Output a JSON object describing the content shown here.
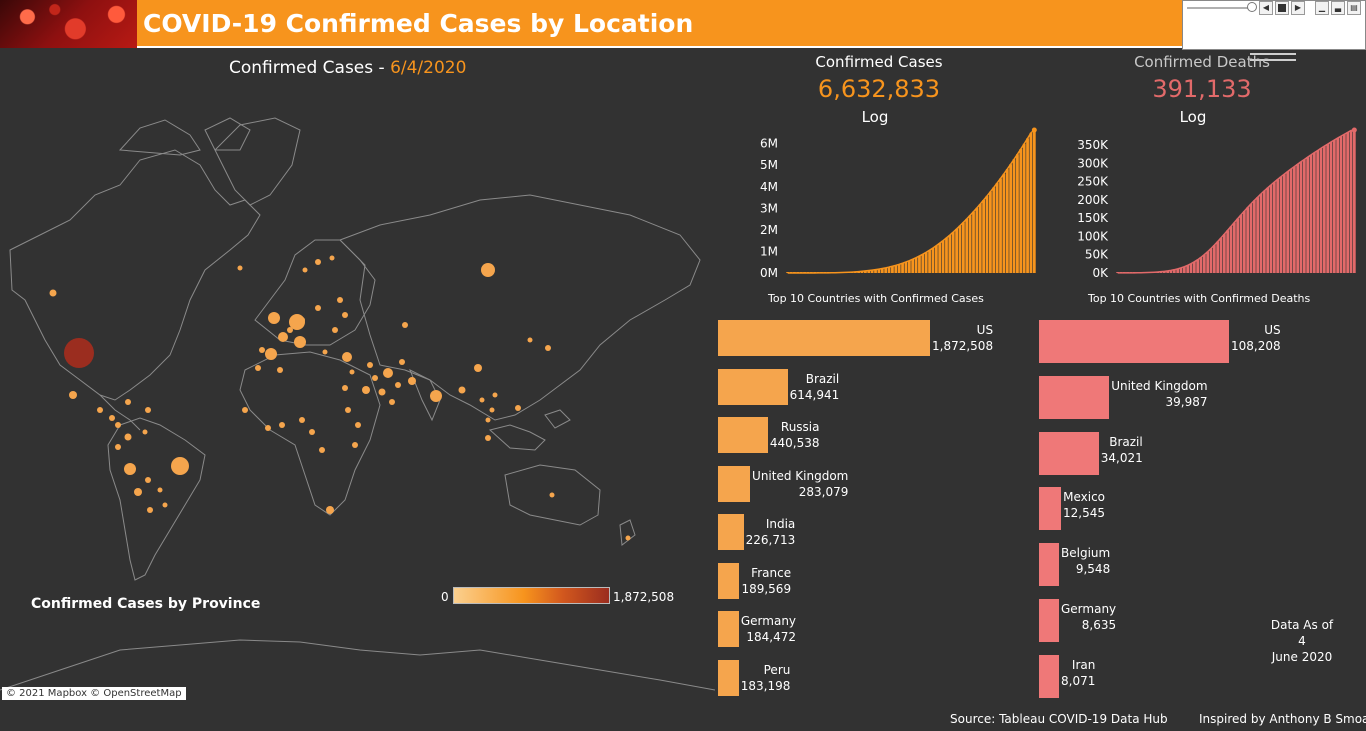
{
  "header": {
    "title": "COVID-19 Confirmed Cases by Location",
    "image": "coronavirus-banner"
  },
  "map_title": {
    "prefix": "Confirmed Cases - ",
    "date": "6/4/2020"
  },
  "map": {
    "credit": "© 2021 Mapbox © OpenStreetMap",
    "caption": "Confirmed Cases by Province",
    "legend_min": "0",
    "legend_max": "1,872,508"
  },
  "kpis": {
    "cases": {
      "label": "Confirmed Cases",
      "value": "6,632,833",
      "scale": "Log"
    },
    "deaths": {
      "label": "Confirmed Deaths",
      "value": "391,133",
      "scale": "Log"
    }
  },
  "colors": {
    "accent": "#f7941d",
    "cases_bar": "#f5a54d",
    "deaths_bar": "#ef7878",
    "deaths_line": "#e26a6a",
    "background": "#323232"
  },
  "chart_data": [
    {
      "type": "bar",
      "title": "",
      "ylabel": "",
      "y_ticks": [
        "0M",
        "1M",
        "2M",
        "3M",
        "4M",
        "5M",
        "6M"
      ],
      "ylim": [
        0,
        6632833
      ],
      "series": [
        {
          "values": [
            0.5,
            0.5,
            0.6,
            0.7,
            0.9,
            1.1,
            1.4,
            1.8,
            2.4,
            3.2,
            4.2,
            5.6,
            7.4,
            9.6,
            12.5,
            16,
            21,
            27,
            34,
            43,
            54,
            66,
            80,
            96,
            114,
            134,
            156,
            181,
            209,
            240,
            275,
            314,
            357,
            404,
            456,
            512,
            573,
            640,
            712,
            790,
            874,
            964,
            1060,
            1160,
            1270,
            1385,
            1505,
            1630,
            1760,
            1900,
            2045,
            2195,
            2350,
            2510,
            2675,
            2845,
            3020,
            3200,
            3385,
            3575,
            3770,
            3970,
            4175,
            4385,
            4600,
            4820,
            5045,
            5275,
            5510,
            5750,
            5995,
            6245,
            6500,
            6633
          ]
        }
      ]
    },
    {
      "type": "bar",
      "title": "",
      "ylabel": "",
      "y_ticks": [
        "0K",
        "50K",
        "100K",
        "150K",
        "200K",
        "250K",
        "300K",
        "350K"
      ],
      "ylim": [
        0,
        391133
      ],
      "series": [
        {
          "values": [
            0.2,
            0.2,
            0.3,
            0.3,
            0.4,
            0.5,
            0.6,
            0.8,
            1,
            1.3,
            1.7,
            2.2,
            2.8,
            3.6,
            4.6,
            5.8,
            7.3,
            9.1,
            11.3,
            14,
            17.2,
            21,
            25.5,
            30.6,
            36.4,
            43,
            50.3,
            58.3,
            67,
            76.3,
            86,
            96,
            106.3,
            116.8,
            127.4,
            138,
            148.6,
            159.1,
            169.4,
            179.4,
            189.1,
            198.5,
            207.6,
            216.4,
            224.9,
            233.1,
            241,
            248.7,
            256.2,
            263.5,
            270.6,
            277.6,
            284.4,
            291.1,
            297.7,
            304.2,
            310.6,
            316.9,
            323.1,
            329.2,
            335.2,
            341.1,
            346.9,
            352.6,
            358.2,
            363.7,
            369.1,
            374.4,
            379.6,
            384.7,
            389.7,
            391.1
          ]
        }
      ]
    },
    {
      "type": "bar",
      "title": "Top 10 Countries with Confirmed Cases",
      "categories": [
        "US",
        "Brazil",
        "Russia",
        "United Kingdom",
        "India",
        "France",
        "Germany",
        "Peru"
      ],
      "values": [
        1872508,
        614941,
        440538,
        283079,
        226713,
        189569,
        184472,
        183198
      ],
      "value_labels": [
        "1,872,508",
        "614,941",
        "440,538",
        "283,079",
        "226,713",
        "189,569",
        "184,472",
        "183,198"
      ]
    },
    {
      "type": "bar",
      "title": "Top 10 Countries with Confirmed Deaths",
      "categories": [
        "US",
        "United Kingdom",
        "Brazil",
        "Mexico",
        "Belgium",
        "Germany",
        "Iran"
      ],
      "values": [
        108208,
        39987,
        34021,
        12545,
        9548,
        8635,
        8071
      ],
      "value_labels": [
        "108,208",
        "39,987",
        "34,021",
        "12,545",
        "9,548",
        "8,635",
        "8,071"
      ]
    }
  ],
  "as_of": {
    "line1": "Data As of",
    "line2": "4",
    "line3": "June 2020"
  },
  "footer": {
    "source": "Source: Tableau COVID-19 Data Hub",
    "credit": "Inspired by Anthony B Smoak"
  }
}
